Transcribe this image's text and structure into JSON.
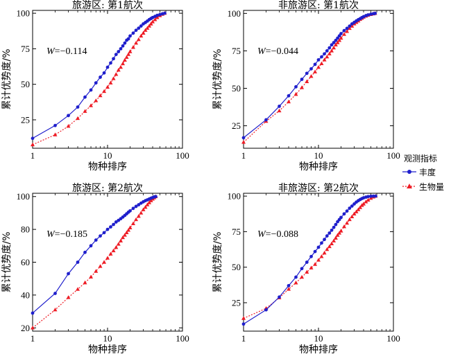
{
  "legend": {
    "title": "观测指标",
    "items": [
      {
        "label": "丰度",
        "color": "#1f1fcc",
        "style": "solid",
        "marker": "circle"
      },
      {
        "label": "生物量",
        "color": "#ee1c25",
        "style": "dotted",
        "marker": "triangle"
      }
    ]
  },
  "chart_data": [
    {
      "type": "line",
      "title": "旅游区: 第1航次",
      "xlabel": "物种排序",
      "ylabel": "累计优势度/%",
      "xscale": "log",
      "xlim": [
        1,
        100
      ],
      "ylim": [
        5,
        102
      ],
      "yticks": [
        25,
        50,
        75,
        100
      ],
      "xticks": [
        1,
        10,
        100
      ],
      "annotation": {
        "var": "W",
        "text": "=−0.114"
      },
      "grid": false,
      "series": [
        {
          "name": "丰度",
          "x": [
            1,
            2,
            3,
            4,
            5,
            6,
            7,
            8,
            9,
            10,
            11,
            12,
            13,
            14,
            15,
            16,
            17,
            18,
            19,
            20,
            22,
            24,
            26,
            28,
            30,
            32,
            34,
            36,
            38,
            40,
            43,
            46,
            50,
            54,
            58
          ],
          "y": [
            12,
            21,
            28,
            34,
            41,
            46,
            51,
            55,
            58,
            62,
            65,
            68,
            71,
            73,
            75,
            77,
            79,
            81,
            82,
            84,
            86,
            88,
            89.5,
            91,
            92.5,
            93.5,
            94.5,
            95.5,
            96.3,
            97,
            97.8,
            98.5,
            99.1,
            99.6,
            100
          ]
        },
        {
          "name": "生物量",
          "x": [
            1,
            2,
            3,
            4,
            5,
            6,
            7,
            8,
            9,
            10,
            11,
            12,
            13,
            14,
            15,
            16,
            17,
            18,
            19,
            20,
            22,
            24,
            26,
            28,
            30,
            32,
            34,
            36,
            38,
            40,
            43,
            46,
            50,
            54,
            58
          ],
          "y": [
            7.5,
            14.5,
            20.5,
            26,
            31,
            35,
            38.5,
            42,
            45,
            48,
            51,
            54,
            57,
            60,
            62,
            64.5,
            67,
            69,
            71,
            73,
            76,
            79,
            81.5,
            84,
            86,
            88,
            89.5,
            91,
            92.5,
            94,
            95.5,
            97,
            98.3,
            99.3,
            100
          ]
        }
      ]
    },
    {
      "type": "line",
      "title": "非旅游区: 第1航次",
      "xlabel": "物种排序",
      "ylabel": "累计优势度/%",
      "xscale": "log",
      "xlim": [
        1,
        100
      ],
      "ylim": [
        10,
        102
      ],
      "yticks": [
        25,
        50,
        75,
        100
      ],
      "xticks": [
        1,
        10,
        100
      ],
      "annotation": {
        "var": "W",
        "text": "=−0.044"
      },
      "grid": false,
      "series": [
        {
          "name": "丰度",
          "x": [
            1,
            2,
            3,
            4,
            5,
            6,
            7,
            8,
            9,
            10,
            11,
            12,
            13,
            14,
            15,
            16,
            17,
            18,
            19,
            20,
            22,
            24,
            26,
            28,
            30,
            32,
            34,
            36,
            38,
            40,
            43,
            46,
            50,
            54,
            57
          ],
          "y": [
            17,
            29,
            38,
            45,
            51,
            56,
            60,
            63,
            66,
            69,
            71,
            73,
            75,
            77,
            79,
            80.5,
            82,
            83.5,
            85,
            86.5,
            88.5,
            90,
            91.5,
            93,
            94,
            95,
            95.8,
            96.5,
            97.2,
            97.8,
            98.5,
            99,
            99.5,
            99.8,
            100
          ]
        },
        {
          "name": "生物量",
          "x": [
            1,
            2,
            3,
            4,
            5,
            6,
            7,
            8,
            9,
            10,
            11,
            12,
            13,
            14,
            15,
            16,
            17,
            18,
            19,
            20,
            22,
            24,
            26,
            28,
            30,
            32,
            34,
            36,
            38,
            40,
            43,
            46,
            50,
            54,
            57
          ],
          "y": [
            14,
            28,
            35,
            41,
            46,
            50.5,
            54.5,
            58,
            61,
            64,
            66.5,
            69,
            71,
            73,
            75,
            77,
            79,
            80.5,
            82,
            83.5,
            86,
            88,
            90,
            91.5,
            93,
            94,
            95,
            96,
            96.8,
            97.5,
            98.2,
            98.8,
            99.3,
            99.7,
            100
          ]
        }
      ]
    },
    {
      "type": "line",
      "title": "旅游区: 第2航次",
      "xlabel": "物种排序",
      "ylabel": "累计优势度/%",
      "xscale": "log",
      "xlim": [
        1,
        100
      ],
      "ylim": [
        18,
        102
      ],
      "yticks": [
        20,
        40,
        60,
        80,
        100
      ],
      "xticks": [
        1,
        10,
        100
      ],
      "annotation": {
        "var": "W",
        "text": "=−0.185"
      },
      "grid": false,
      "series": [
        {
          "name": "丰度",
          "x": [
            1,
            2,
            3,
            4,
            5,
            6,
            7,
            8,
            9,
            10,
            11,
            12,
            13,
            14,
            15,
            16,
            17,
            18,
            19,
            20,
            22,
            24,
            26,
            28,
            30,
            32,
            34,
            36,
            38,
            40,
            42,
            44
          ],
          "y": [
            29,
            41,
            53,
            60,
            66,
            70,
            73.5,
            76,
            78,
            80,
            81.5,
            83,
            84.5,
            85.5,
            86.5,
            87.5,
            88.5,
            89.5,
            90.5,
            91.3,
            92.8,
            94,
            95,
            96,
            96.8,
            97.5,
            98,
            98.5,
            99,
            99.4,
            99.8,
            100
          ]
        },
        {
          "name": "生物量",
          "x": [
            1,
            2,
            3,
            4,
            5,
            6,
            7,
            8,
            9,
            10,
            11,
            12,
            13,
            14,
            15,
            16,
            17,
            18,
            19,
            20,
            22,
            24,
            26,
            28,
            30,
            32,
            34,
            36,
            38,
            40,
            42,
            44
          ],
          "y": [
            20,
            31,
            38.5,
            43.5,
            47.5,
            51,
            54.5,
            57.5,
            60,
            62.5,
            65,
            67,
            69,
            71,
            73,
            75,
            76.5,
            78,
            79.5,
            81,
            83.5,
            86,
            88,
            90,
            92,
            93.5,
            95,
            96.3,
            97.5,
            98.5,
            99.3,
            100
          ]
        }
      ]
    },
    {
      "type": "line",
      "title": "非旅游区: 第2航次",
      "xlabel": "物种排序",
      "ylabel": "累计优势度/%",
      "xscale": "log",
      "xlim": [
        1,
        100
      ],
      "ylim": [
        5,
        102
      ],
      "yticks": [
        25,
        50,
        75,
        100
      ],
      "xticks": [
        1,
        10,
        100
      ],
      "annotation": {
        "var": "W",
        "text": "=−0.088"
      },
      "grid": false,
      "series": [
        {
          "name": "丰度",
          "x": [
            1,
            2,
            3,
            4,
            5,
            6,
            7,
            8,
            9,
            10,
            11,
            12,
            13,
            14,
            15,
            16,
            17,
            18,
            19,
            20,
            22,
            24,
            26,
            28,
            30,
            32,
            34,
            36,
            38,
            40,
            43,
            46,
            50,
            54,
            58
          ],
          "y": [
            10,
            20,
            29,
            37,
            43,
            49,
            53.5,
            57.5,
            61,
            64,
            67,
            69.5,
            72,
            74,
            76,
            78,
            80,
            82,
            83.5,
            85,
            87.5,
            89.5,
            91.5,
            93,
            94.5,
            95.8,
            96.8,
            97.6,
            98.3,
            98.8,
            99.3,
            99.7,
            99.9,
            100,
            100
          ]
        },
        {
          "name": "生物量",
          "x": [
            1,
            2,
            3,
            4,
            5,
            6,
            7,
            8,
            9,
            10,
            11,
            12,
            13,
            14,
            15,
            16,
            17,
            18,
            19,
            20,
            22,
            24,
            26,
            28,
            30,
            32,
            34,
            36,
            38,
            40,
            43,
            46,
            50,
            54,
            58
          ],
          "y": [
            14,
            21,
            28.5,
            34.5,
            39,
            43,
            46.5,
            49.5,
            52,
            55,
            57.5,
            60,
            62.5,
            64.5,
            66.5,
            68.5,
            70.5,
            72.5,
            74,
            75.5,
            78.5,
            81,
            83.5,
            85.5,
            87.5,
            89,
            90.5,
            92,
            93.5,
            94.5,
            96,
            97.2,
            98.5,
            99.4,
            100
          ]
        }
      ]
    }
  ]
}
